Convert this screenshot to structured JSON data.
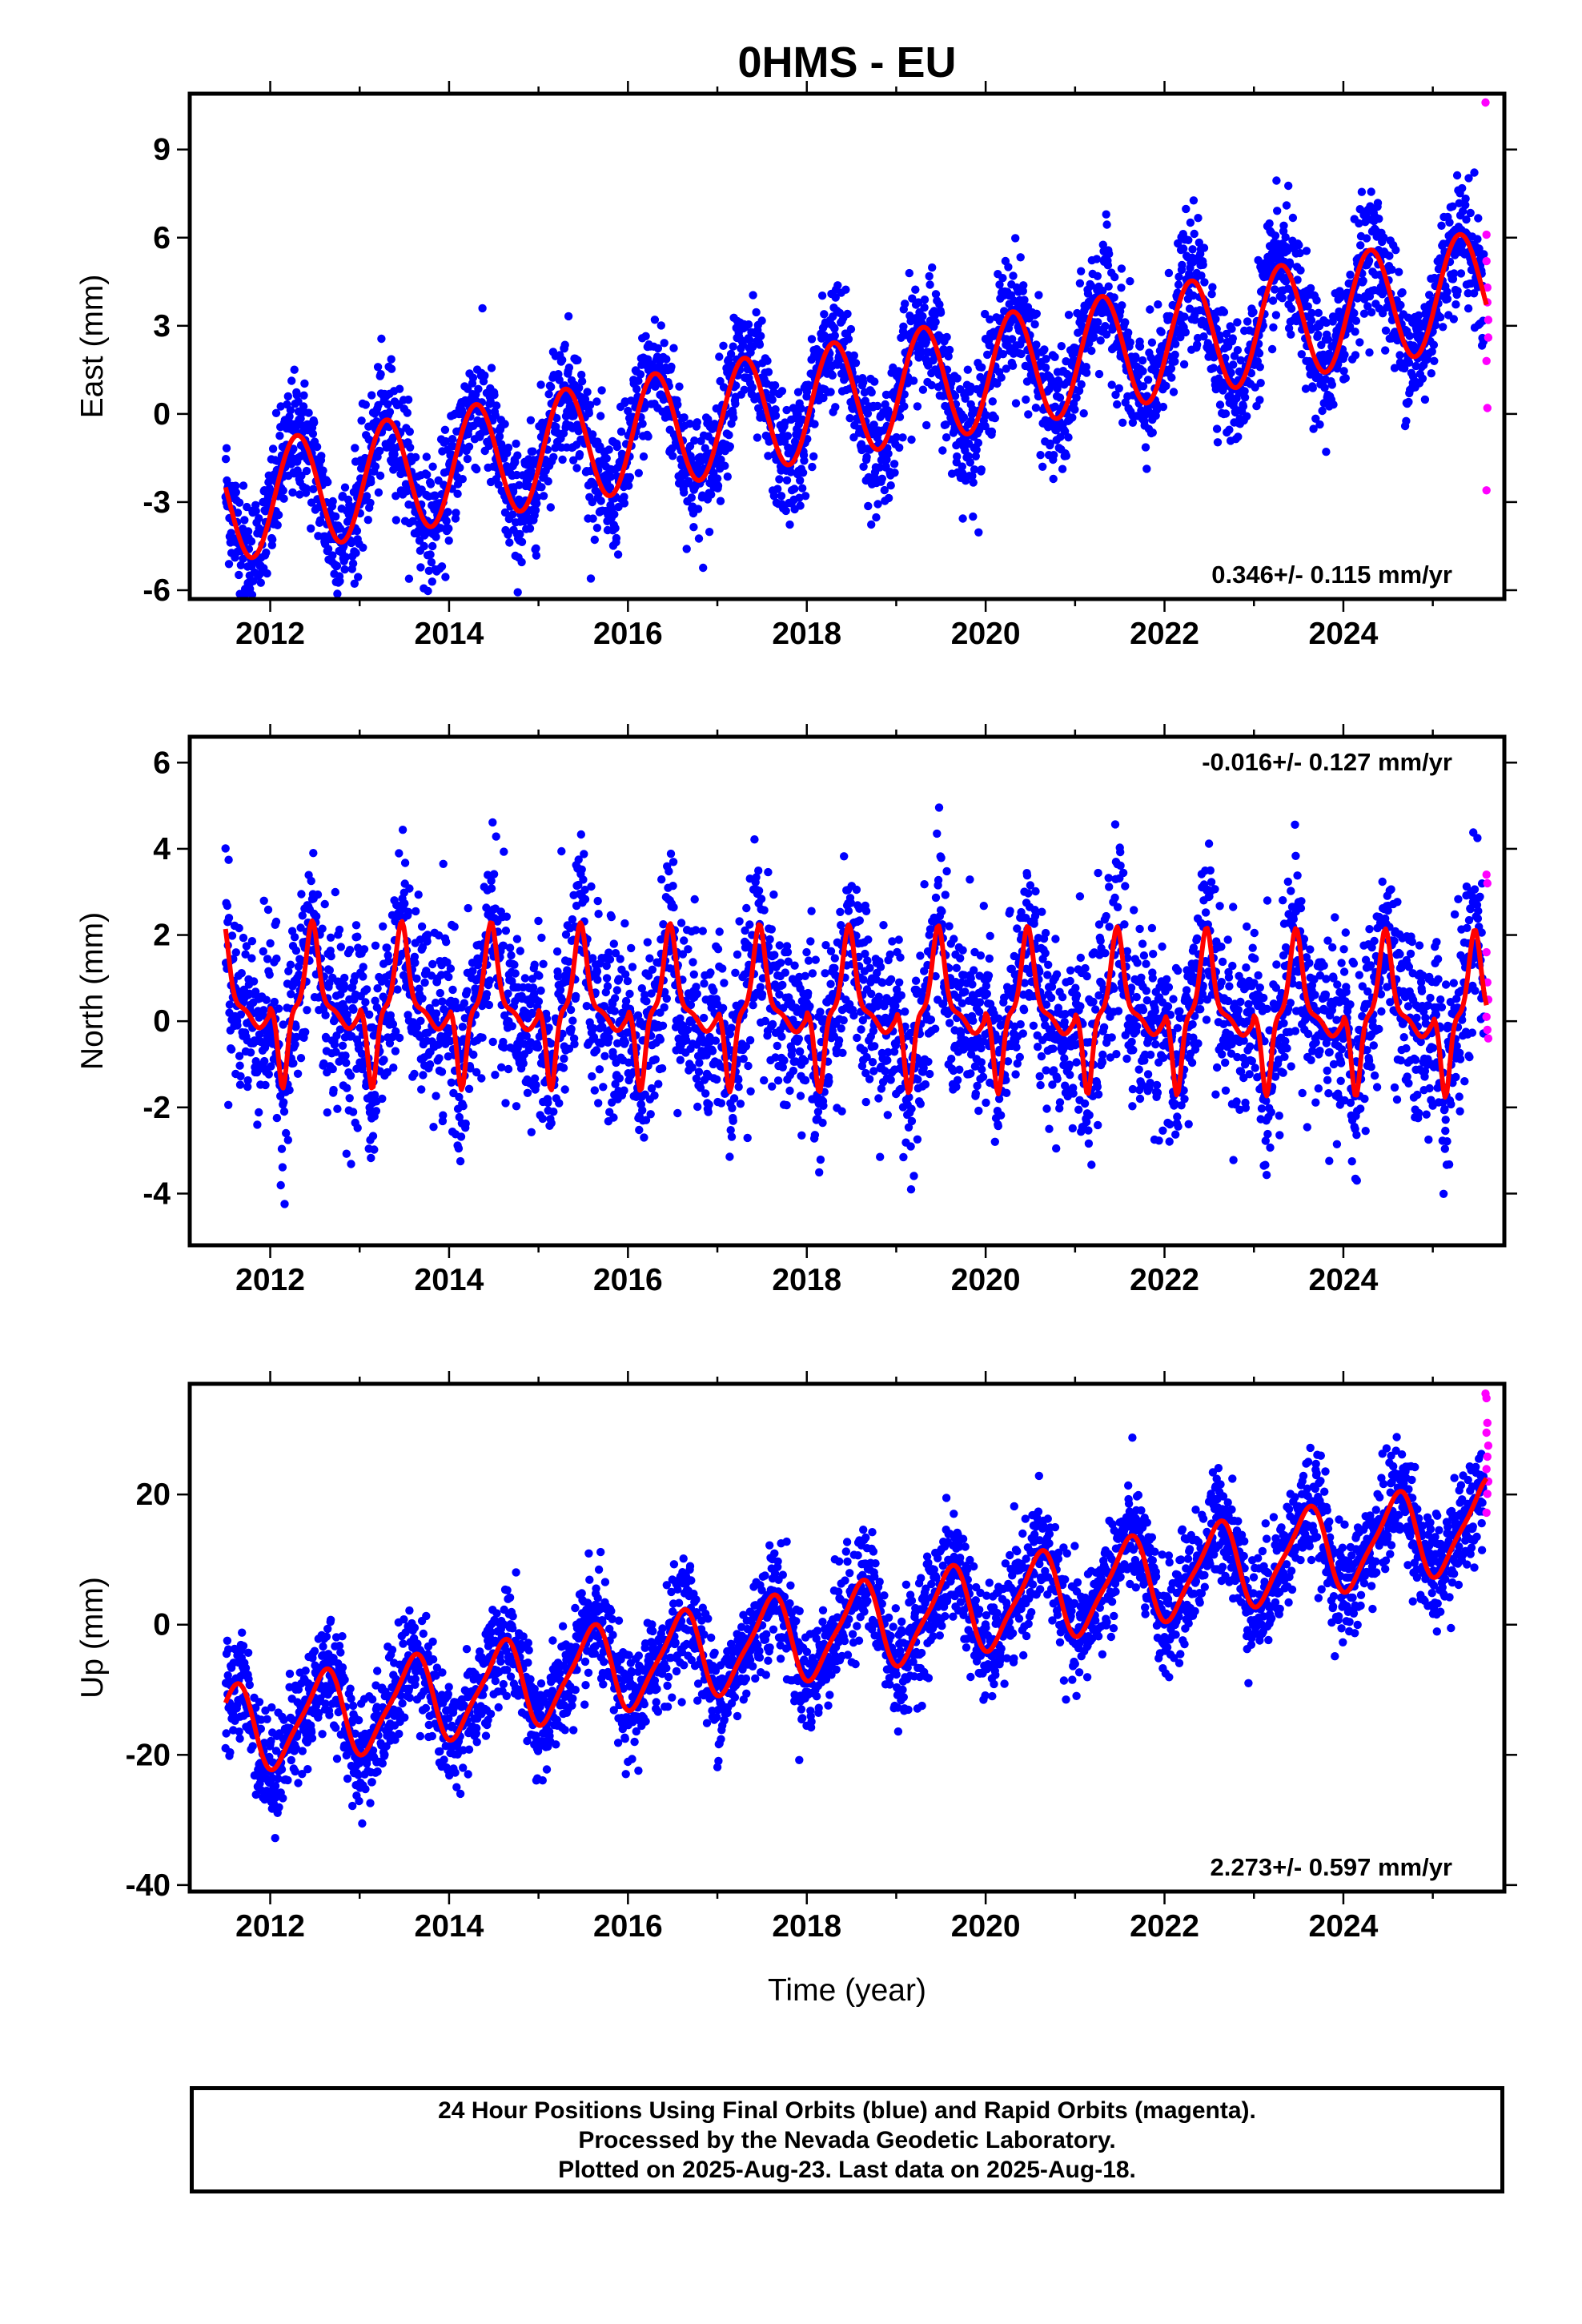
{
  "title": "0HMS - EU",
  "colors": {
    "final_orbits": "#0000ff",
    "rapid_orbits": "#ff00ff",
    "model_fit": "#ff0000"
  },
  "xlabel": "Time (year)",
  "xticks": [
    "2012",
    "2014",
    "2016",
    "2018",
    "2020",
    "2022",
    "2024"
  ],
  "caption": {
    "line1": "24 Hour Positions Using Final Orbits (blue) and Rapid Orbits (magenta).",
    "line2": "Processed by the Nevada Geodetic Laboratory.",
    "line3": "Plotted on 2025-Aug-23. Last data on 2025-Aug-18."
  },
  "chart_data": [
    {
      "type": "scatter",
      "title": "0HMS - EU",
      "ylabel": "East (mm)",
      "xlabel": "",
      "xlim": [
        2011.1,
        2025.8
      ],
      "ylim": [
        -6.3,
        10.9
      ],
      "yticks": [
        -6,
        -3,
        0,
        3,
        6,
        9
      ],
      "xticks": [
        2012,
        2014,
        2016,
        2018,
        2020,
        2022,
        2024
      ],
      "rate": "0.346+/- 0.115 mm/yr",
      "grid": false,
      "series": [],
      "model": {
        "trend": [
          -3.1,
          0.346
        ],
        "annual_amp": 1.95,
        "annual_phase_peak": 0.3,
        "start": 2011.5,
        "end": 2025.6
      },
      "final_orbits_range": [
        2011.5,
        2025.57
      ],
      "rapid_orbits": {
        "x": [
          2025.59,
          2025.6,
          2025.6,
          2025.61,
          2025.61,
          2025.62,
          2025.62,
          2025.6,
          2025.61,
          2025.6
        ],
        "y": [
          10.6,
          6.1,
          5.2,
          4.3,
          3.8,
          3.2,
          2.6,
          1.8,
          0.2,
          -2.6
        ]
      }
    },
    {
      "type": "scatter",
      "ylabel": "North (mm)",
      "xlabel": "",
      "xlim": [
        2011.1,
        2025.8
      ],
      "ylim": [
        -5.2,
        6.6
      ],
      "yticks": [
        -4,
        -2,
        0,
        2,
        4,
        6
      ],
      "xticks": [
        2012,
        2014,
        2016,
        2018,
        2020,
        2022,
        2024
      ],
      "rate": "-0.016+/- 0.127 mm/yr",
      "grid": false,
      "series": [],
      "model": {
        "trend": [
          0.35,
          -0.016
        ],
        "annual_amp": 2.0,
        "start": 2011.5,
        "end": 2025.6
      },
      "final_orbits_range": [
        2011.5,
        2025.57
      ],
      "rapid_orbits": {
        "x": [
          2025.6,
          2025.61,
          2025.6,
          2025.61,
          2025.62,
          2025.6,
          2025.61,
          2025.62
        ],
        "y": [
          3.4,
          3.2,
          1.6,
          0.9,
          0.5,
          0.1,
          -0.2,
          -0.4
        ]
      }
    },
    {
      "type": "scatter",
      "ylabel": "Up (mm)",
      "xlabel": "Time (year)",
      "xlim": [
        2011.1,
        2025.8
      ],
      "ylim": [
        -41,
        37
      ],
      "yticks": [
        -40,
        -20,
        0,
        20
      ],
      "xticks": [
        2012,
        2014,
        2016,
        2018,
        2020,
        2022,
        2024
      ],
      "rate": "2.273+/- 0.597 mm/yr",
      "grid": false,
      "series": [],
      "model": {
        "trend": [
          -16.5,
          2.273
        ],
        "annual_amp": 6.5,
        "start": 2011.5,
        "end": 2025.6
      },
      "final_orbits_range": [
        2011.5,
        2025.57
      ],
      "rapid_orbits": {
        "x": [
          2025.59,
          2025.6,
          2025.61,
          2025.6,
          2025.62,
          2025.61,
          2025.6,
          2025.62,
          2025.61,
          2025.6
        ],
        "y": [
          35.5,
          34.8,
          31.0,
          29.5,
          27.5,
          25.8,
          23.9,
          22.0,
          20.1,
          17.2
        ]
      }
    }
  ]
}
